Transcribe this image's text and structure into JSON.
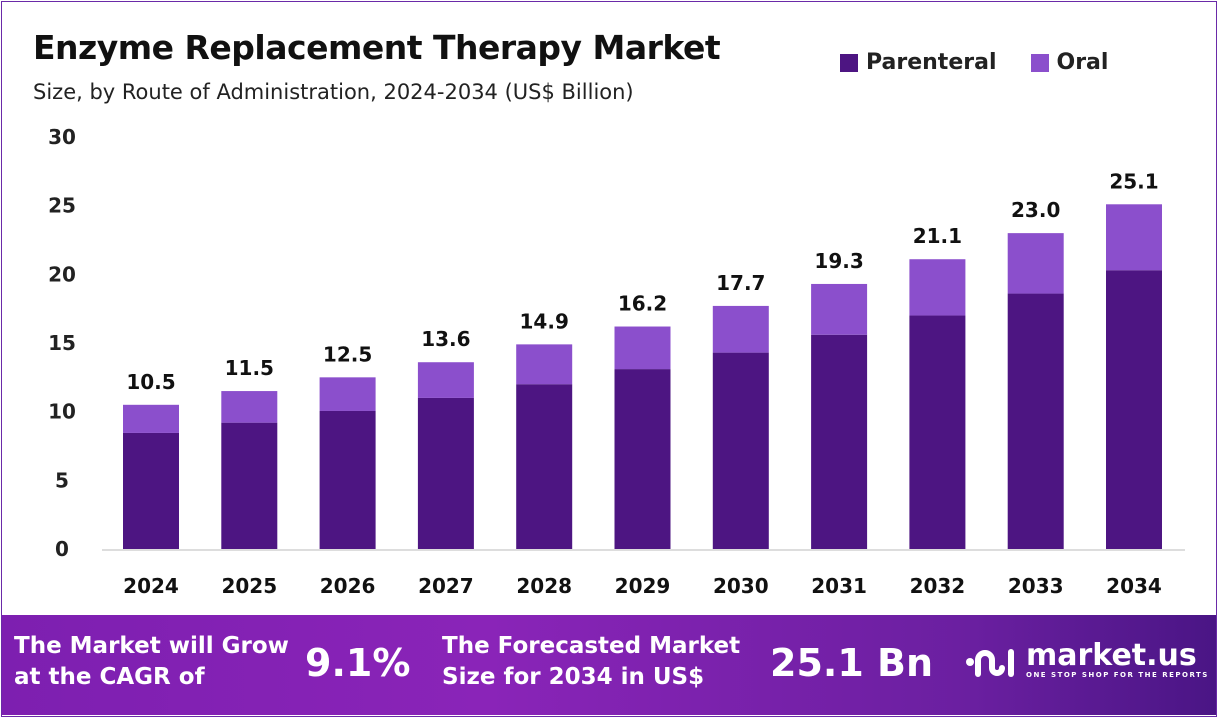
{
  "chart_data": {
    "type": "bar",
    "stacked": true,
    "title": "Enzyme Replacement Therapy Market",
    "subtitle": "Size, by Route of Administration, 2024-2034 (US$ Billion)",
    "categories": [
      "2024",
      "2025",
      "2026",
      "2027",
      "2028",
      "2029",
      "2030",
      "2031",
      "2032",
      "2033",
      "2034"
    ],
    "series": [
      {
        "name": "Parenteral",
        "color": "#4d1582",
        "values": [
          8.45,
          9.2,
          10.05,
          11.0,
          12.0,
          13.1,
          14.3,
          15.6,
          17.0,
          18.6,
          20.3
        ]
      },
      {
        "name": "Oral",
        "color": "#8b4fcc",
        "values": [
          2.05,
          2.3,
          2.45,
          2.6,
          2.9,
          3.1,
          3.4,
          3.7,
          4.1,
          4.4,
          4.8
        ]
      }
    ],
    "totals": [
      "10.5",
      "11.5",
      "12.5",
      "13.6",
      "14.9",
      "16.2",
      "17.7",
      "19.3",
      "21.1",
      "23.0",
      "25.1"
    ],
    "ylim": [
      0,
      30
    ],
    "yticks": [
      "0",
      "5",
      "10",
      "15",
      "20",
      "25",
      "30"
    ],
    "grid": false,
    "legend_position": "top-right"
  },
  "footer": {
    "cagr_text": "The Market will Grow at the CAGR of",
    "cagr_line1": "The Market will Grow",
    "cagr_line2": "at the CAGR of",
    "cagr_value": "9.1%",
    "forecast_line1": "The Forecasted Market",
    "forecast_line2": "Size for 2034 in US$",
    "forecast_value": "25.1 Bn",
    "logo_name": "market.us",
    "logo_tagline": "ONE STOP SHOP FOR THE REPORTS"
  }
}
